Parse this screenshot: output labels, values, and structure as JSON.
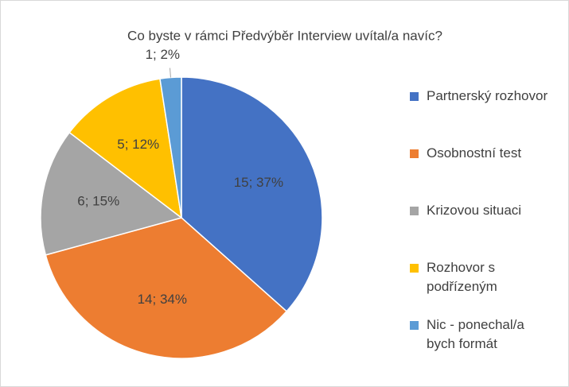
{
  "chart_data": {
    "type": "pie",
    "title": "Co byste v rámci Předvýběr Interview uvítal/a navíc?",
    "categories": [
      "Partnerský rozhovor",
      "Osobnostní test",
      "Krizovou situaci",
      "Rozhovor s podřízeným",
      "Nic - ponechal/a bych formát"
    ],
    "values": [
      15,
      14,
      6,
      5,
      1
    ],
    "value_labels": [
      "15; 37%",
      "14; 34%",
      "6; 15%",
      "5; 12%",
      "1; 2%"
    ],
    "colors": [
      "#4472c4",
      "#ed7d31",
      "#a5a5a5",
      "#ffc000",
      "#5b9bd5"
    ],
    "legend": "right"
  }
}
